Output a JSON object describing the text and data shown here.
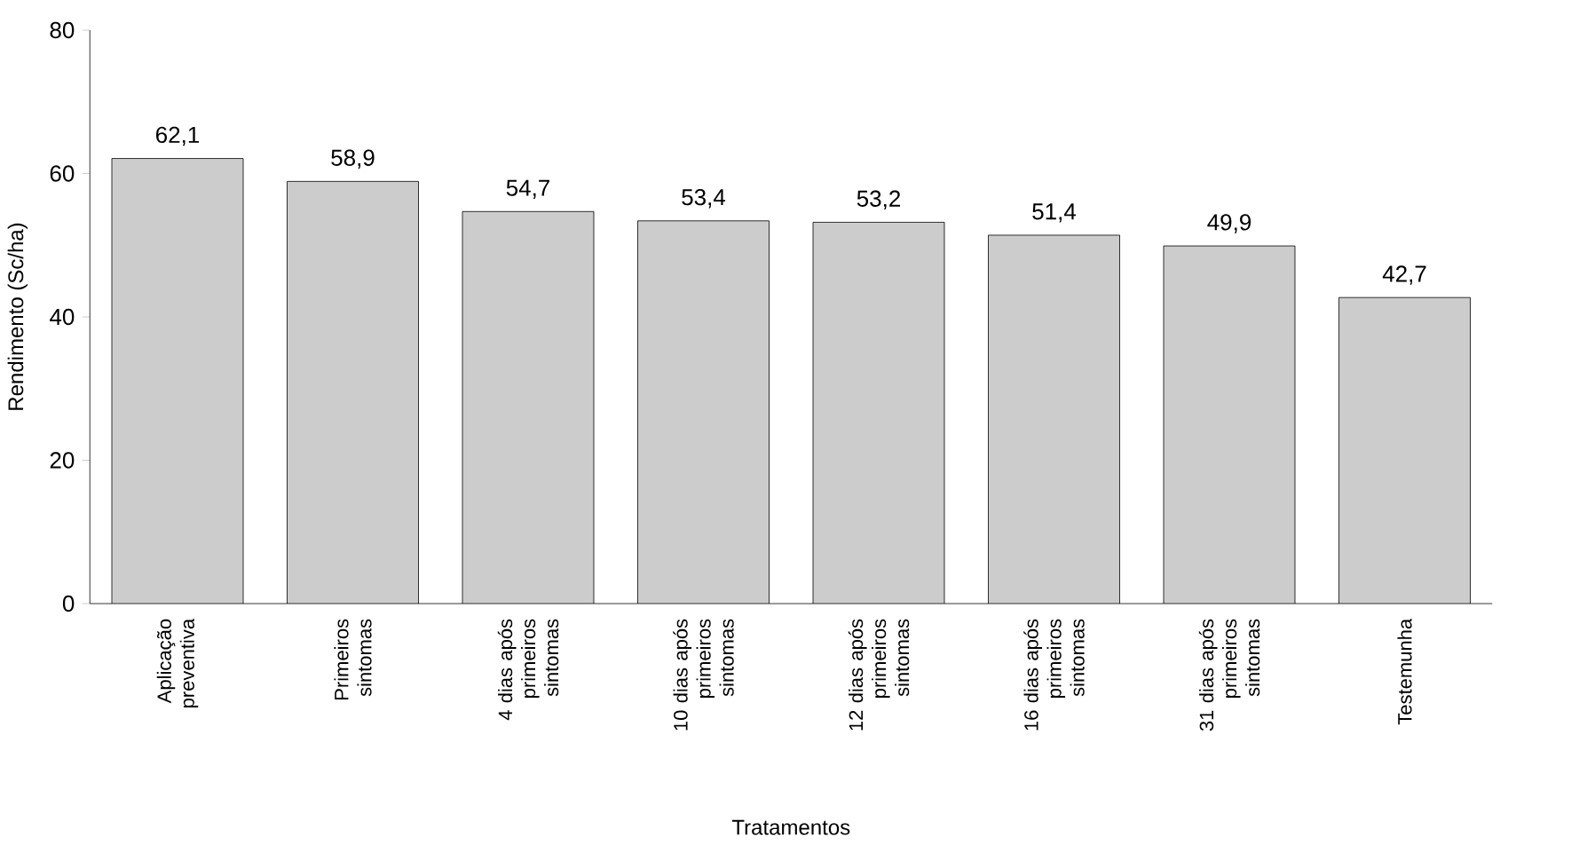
{
  "chart_data": {
    "type": "bar",
    "xlabel": "Tratamentos",
    "ylabel": "Rendimento (Sc/ha)",
    "categories": [
      "Aplicação preventiva",
      "Primeiros sintomas",
      "4 dias após primeiros sintomas",
      "10 dias após primeiros sintomas",
      "12 dias após primeiros sintomas",
      "16 dias após primeiros sintomas",
      "31 dias após primeiros sintomas",
      "Testemunha"
    ],
    "values": [
      62.1,
      58.9,
      54.7,
      53.4,
      53.2,
      51.4,
      49.9,
      42.7
    ],
    "value_labels": [
      "62,1",
      "58,9",
      "54,7",
      "53,4",
      "53,2",
      "51,4",
      "49,9",
      "42,7"
    ],
    "color": "#cccccc",
    "ylim": [
      0,
      80
    ],
    "yticks": [
      0,
      20,
      40,
      60,
      80
    ],
    "grid": false
  }
}
